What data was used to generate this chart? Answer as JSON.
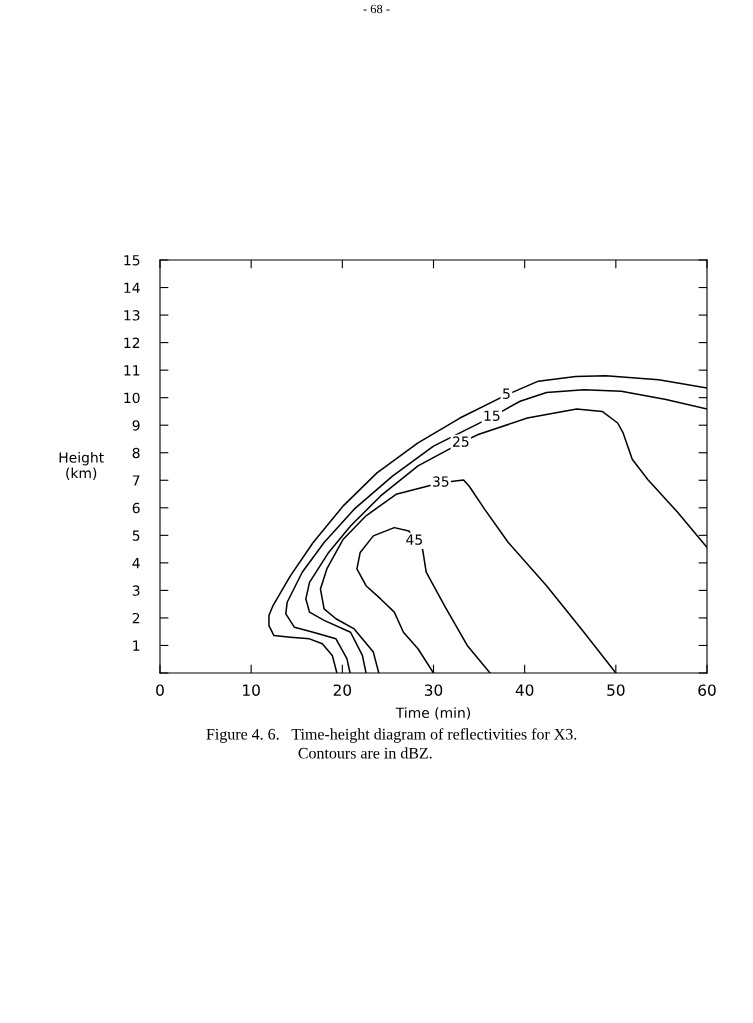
{
  "chart_data": {
    "type": "line",
    "xlabel": "Time (min)",
    "ylabel": "Height\n(km)",
    "xlim": [
      0,
      60
    ],
    "ylim": [
      0,
      15
    ],
    "xticks": [
      0,
      10,
      20,
      30,
      40,
      50,
      60
    ],
    "yticks": [
      {
        "value": 0,
        "label": null
      },
      1,
      2,
      3,
      4,
      5,
      6,
      7,
      8,
      9,
      10,
      11,
      12,
      13,
      14,
      15
    ],
    "grid": false,
    "marker": "none",
    "line_style": "solid",
    "series": [
      {
        "color": "#000000",
        "x": [
          19.4,
          18.9,
          17.8,
          16.4,
          14.3,
          12.5,
          11.95,
          11.95,
          12.4,
          14.3,
          16.8,
          20.1,
          23.8,
          28.3,
          32.9,
          38.0,
          41.5,
          45.6,
          48.9,
          54.7,
          60
        ],
        "values": [
          0,
          0.64,
          1.06,
          1.24,
          1.3,
          1.36,
          1.72,
          2.09,
          2.45,
          3.53,
          4.74,
          6.07,
          7.27,
          8.36,
          9.26,
          10.1,
          10.6,
          10.77,
          10.8,
          10.65,
          10.35
        ]
      },
      {
        "color": "#000000",
        "x": [
          20.85,
          20.5,
          19.3,
          16.8,
          14.75,
          13.8,
          13.95,
          15.6,
          18.0,
          21.3,
          25.5,
          30.0,
          36.4,
          39.5,
          42.4,
          46.5,
          50.6,
          55.5,
          60
        ],
        "values": [
          0,
          0.52,
          1.24,
          1.48,
          1.66,
          2.15,
          2.57,
          3.66,
          4.74,
          5.95,
          7.15,
          8.24,
          9.3,
          9.87,
          10.19,
          10.29,
          10.23,
          9.93,
          9.59
        ]
      },
      {
        "color": "#000000",
        "x": [
          22.6,
          22.2,
          20.9,
          18.0,
          16.4,
          16.0,
          16.4,
          18.5,
          20.9,
          24.2,
          28.3,
          33.0,
          34.9,
          40.3,
          45.7,
          48.5,
          50.2,
          50.8,
          51.8,
          53.5,
          56.8,
          60
        ],
        "values": [
          0,
          0.64,
          1.48,
          1.91,
          2.21,
          2.69,
          3.29,
          4.38,
          5.34,
          6.43,
          7.52,
          8.36,
          8.66,
          9.26,
          9.59,
          9.5,
          9.08,
          8.72,
          7.76,
          7.03,
          5.83,
          4.56
        ]
      },
      {
        "color": "#000000",
        "x": [
          24.0,
          23.4,
          21.3,
          19.3,
          18.0,
          17.6,
          18.3,
          20.1,
          22.6,
          25.9,
          30.8,
          33.3,
          33.9,
          35.6,
          38.2,
          42.4,
          46.5,
          50.0
        ],
        "values": [
          0,
          0.76,
          1.6,
          1.97,
          2.33,
          3.05,
          3.78,
          4.86,
          5.71,
          6.49,
          6.91,
          7.01,
          6.79,
          5.95,
          4.74,
          3.17,
          1.48,
          0
        ]
      },
      {
        "color": "#000000",
        "x": [
          30.0,
          28.3,
          26.7,
          25.7,
          24.2,
          22.6,
          21.6,
          21.96,
          23.4,
          25.7,
          27.3,
          27.9,
          28.8,
          29.2,
          31.2,
          33.7,
          36.2
        ],
        "values": [
          0,
          0.88,
          1.48,
          2.21,
          2.69,
          3.17,
          3.78,
          4.38,
          4.98,
          5.28,
          5.16,
          4.8,
          4.5,
          3.66,
          2.45,
          1.0,
          0
        ]
      }
    ],
    "annotations": [
      {
        "text": "5",
        "x": 38.0,
        "y": 10.1
      },
      {
        "text": "15",
        "x": 36.4,
        "y": 9.3
      },
      {
        "text": "25",
        "x": 33.0,
        "y": 8.36
      },
      {
        "text": "35",
        "x": 30.8,
        "y": 6.91
      },
      {
        "text": "45",
        "x": 27.9,
        "y": 4.8
      },
      "- 68 -",
      "Figure 4. 6.   Time-height diagram of reflectivities for X3.\n                       Contours are in dBZ."
    ]
  }
}
